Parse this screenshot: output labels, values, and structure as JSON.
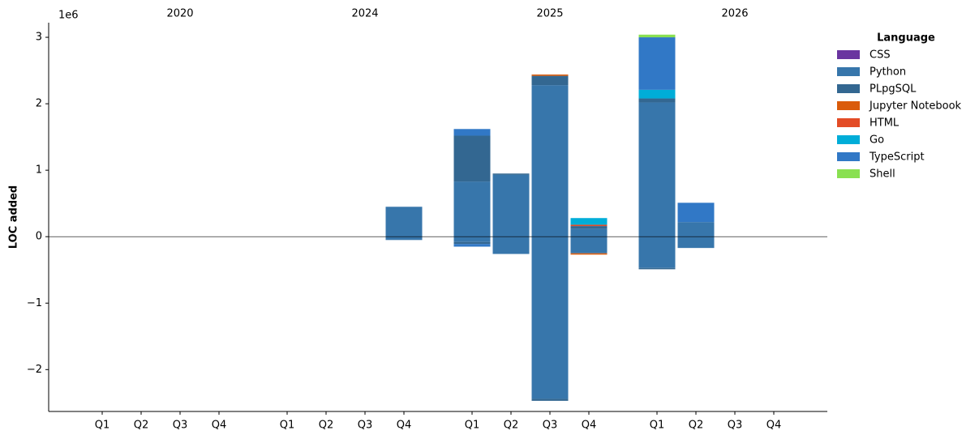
{
  "chart_data": {
    "type": "bar",
    "stacked": true,
    "y_label": "LOC added",
    "y_offset_label": "1e6",
    "legend_title": "Language",
    "legend_position": "outside right",
    "groups": [
      "2020",
      "2024",
      "2025",
      "2026"
    ],
    "categories": [
      "Q1",
      "Q2",
      "Q3",
      "Q4",
      "Q1",
      "Q2",
      "Q3",
      "Q4",
      "Q1",
      "Q2",
      "Q3",
      "Q4",
      "Q1",
      "Q2",
      "Q3",
      "Q4"
    ],
    "ylim": [
      -2.63,
      3.22
    ],
    "yticks": [
      {
        "value": -2,
        "label": "−2"
      },
      {
        "value": -1,
        "label": "−1"
      },
      0,
      1,
      2,
      3
    ],
    "zero_line": true,
    "series": [
      {
        "name": "CSS",
        "color": "#6a35a0",
        "values": [
          0,
          0,
          0,
          0,
          0,
          0,
          0,
          0,
          0,
          0,
          0,
          0,
          0,
          0,
          0,
          0
        ],
        "removed_values": [
          0,
          0,
          0,
          0,
          0,
          0,
          0,
          0,
          0,
          0,
          0,
          0,
          0,
          0,
          0,
          0
        ]
      },
      {
        "name": "Python",
        "color": "#3776ab",
        "values": [
          0,
          0,
          0,
          0,
          0,
          0,
          0,
          0.45,
          0.83,
          0.93,
          2.28,
          0.12,
          2.02,
          0.22,
          0,
          0
        ],
        "removed_values": [
          0,
          0,
          0,
          0,
          0,
          0,
          0,
          -0.05,
          -0.08,
          -0.26,
          -2.44,
          -0.25,
          -0.47,
          -0.17,
          0,
          0
        ]
      },
      {
        "name": "PLpgSQL",
        "color": "#336791",
        "values": [
          0,
          0,
          0,
          0,
          0,
          0,
          0,
          0,
          0.69,
          0.02,
          0.14,
          0.04,
          0.06,
          0,
          0,
          0
        ],
        "removed_values": [
          0,
          0,
          0,
          0,
          0,
          0,
          0,
          0,
          -0.03,
          0,
          -0.03,
          0,
          -0.02,
          0,
          0,
          0
        ]
      },
      {
        "name": "Jupyter Notebook",
        "color": "#da5b0b",
        "values": [
          0,
          0,
          0,
          0,
          0,
          0,
          0,
          0,
          0,
          0,
          0.02,
          0,
          0,
          0,
          0,
          0
        ],
        "removed_values": [
          0,
          0,
          0,
          0,
          0,
          0,
          0,
          0,
          0,
          0,
          0,
          -0.02,
          0,
          0,
          0,
          0
        ]
      },
      {
        "name": "HTML",
        "color": "#e34c26",
        "values": [
          0,
          0,
          0,
          0,
          0,
          0,
          0,
          0,
          0,
          0,
          0,
          0.02,
          0,
          0,
          0,
          0
        ],
        "removed_values": [
          0,
          0,
          0,
          0,
          0,
          0,
          0,
          0,
          0,
          0,
          0,
          0,
          0,
          0,
          0,
          0
        ]
      },
      {
        "name": "Go",
        "color": "#00add8",
        "values": [
          0,
          0,
          0,
          0,
          0,
          0,
          0,
          0,
          0,
          0,
          0,
          0.1,
          0.13,
          0,
          0,
          0
        ],
        "removed_values": [
          0,
          0,
          0,
          0,
          0,
          0,
          0,
          0,
          0,
          0,
          0,
          0,
          0,
          0,
          0,
          0
        ]
      },
      {
        "name": "TypeScript",
        "color": "#3178c6",
        "values": [
          0,
          0,
          0,
          0,
          0,
          0,
          0,
          0,
          0.1,
          0,
          0,
          0,
          0.79,
          0.29,
          0,
          0
        ],
        "removed_values": [
          0,
          0,
          0,
          0,
          0,
          0,
          0,
          0,
          -0.04,
          0,
          0,
          0,
          0,
          0,
          0,
          0
        ]
      },
      {
        "name": "Shell",
        "color": "#89e051",
        "values": [
          0,
          0,
          0,
          0,
          0,
          0,
          0,
          0,
          0,
          0,
          0,
          0,
          0.04,
          0,
          0,
          0
        ],
        "removed_values": [
          0,
          0,
          0,
          0,
          0,
          0,
          0,
          0,
          0,
          0,
          0,
          0,
          0,
          0,
          0,
          0
        ]
      }
    ]
  }
}
